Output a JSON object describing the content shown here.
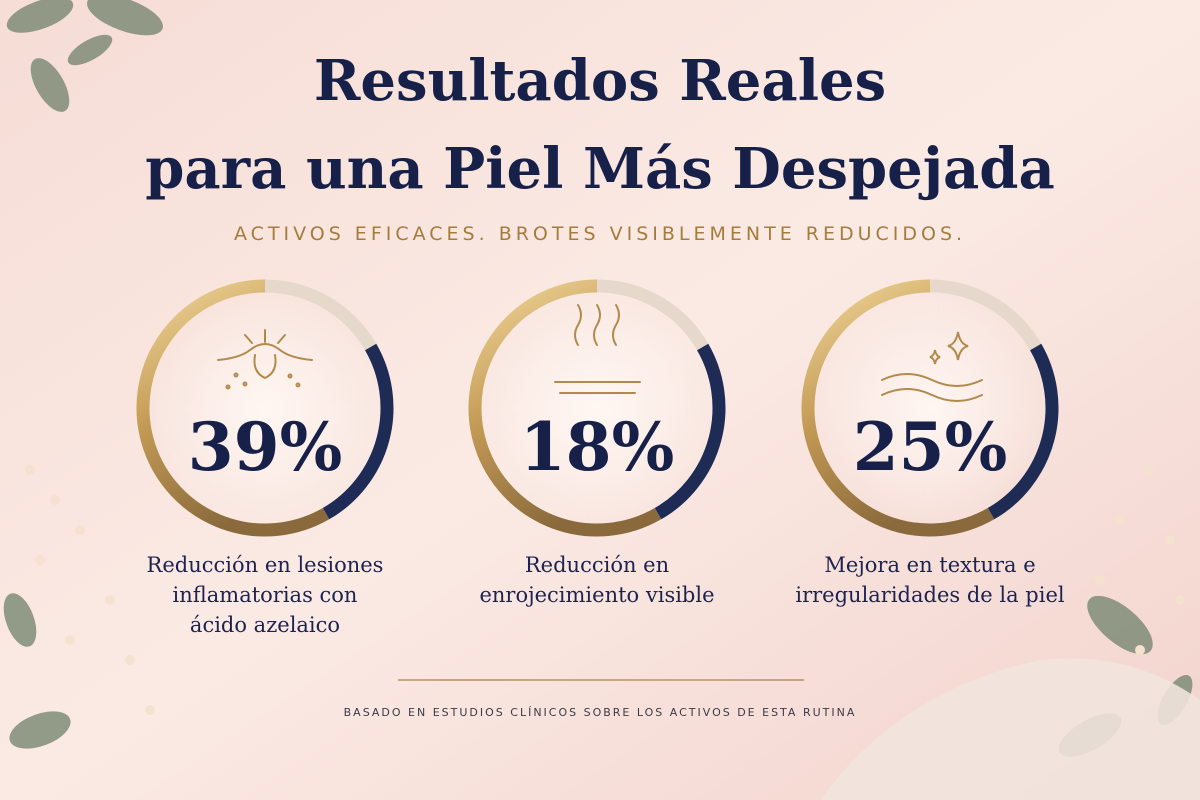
{
  "header": {
    "title": [
      "Resultados Reales",
      "para una Piel Más Despejada"
    ],
    "subtitle": "ACTIVOS EFICACES. BROTES VISIBLEMENTE REDUCIDOS."
  },
  "stats": [
    {
      "value": "39%",
      "caption": [
        "Reducción en lesiones",
        "inflamatorias con",
        "ácido azelaico"
      ]
    },
    {
      "value": "18%",
      "caption": [
        "Reducción en",
        "enrojecimiento visible"
      ]
    },
    {
      "value": "25%",
      "caption": [
        "Mejora en textura e",
        "irregularidades de la piel"
      ]
    }
  ],
  "footer": "BASADO EN ESTUDIOS CLÍNICOS SOBRE LOS ACTIVOS DE ESTA RUTINA"
}
